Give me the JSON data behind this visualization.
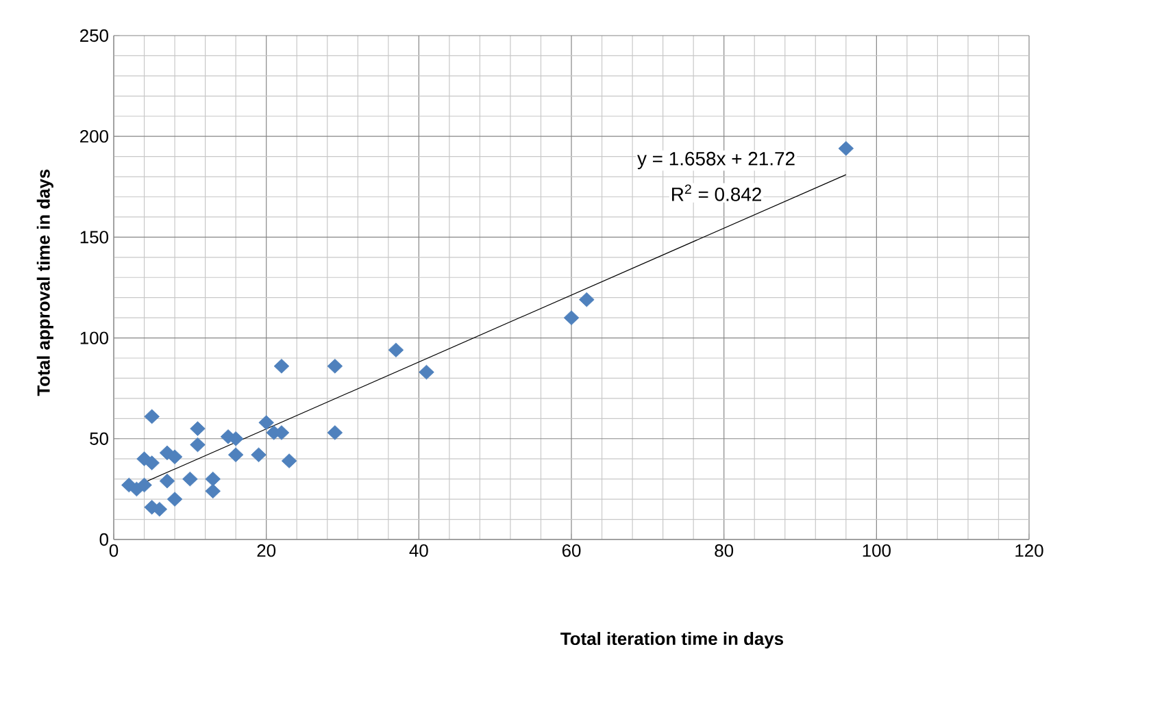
{
  "chart_data": {
    "type": "scatter",
    "xlabel": "Total iteration time in days",
    "ylabel": "Total approval time in days",
    "x": [
      2,
      3,
      4,
      4,
      5,
      5,
      5,
      6,
      7,
      7,
      8,
      8,
      10,
      11,
      11,
      13,
      13,
      15,
      16,
      16,
      19,
      20,
      21,
      22,
      22,
      23,
      29,
      29,
      37,
      41,
      60,
      62,
      96
    ],
    "series": [
      {
        "color": "#4f81bd",
        "marker": "diamond",
        "values": [
          27,
          25,
          40,
          27,
          61,
          38,
          16,
          15,
          43,
          29,
          41,
          20,
          30,
          55,
          47,
          30,
          24,
          51,
          50,
          42,
          42,
          58,
          53,
          53,
          86,
          39,
          86,
          53,
          94,
          83,
          110,
          119,
          194
        ]
      },
      {
        "type": "line",
        "color": "#000000",
        "marker": "none",
        "x": [
          2,
          96
        ],
        "values": [
          25,
          181
        ]
      }
    ],
    "annotations": [
      "y = 1.658x + 21.72",
      "R$^{2}$ = 0.842"
    ],
    "xlim": [
      0,
      120
    ],
    "ylim": [
      0,
      250
    ],
    "xticks": [
      0,
      20,
      40,
      60,
      80,
      100,
      120
    ],
    "yticks": [
      0,
      50,
      100,
      150,
      200,
      250
    ],
    "grid": true
  }
}
